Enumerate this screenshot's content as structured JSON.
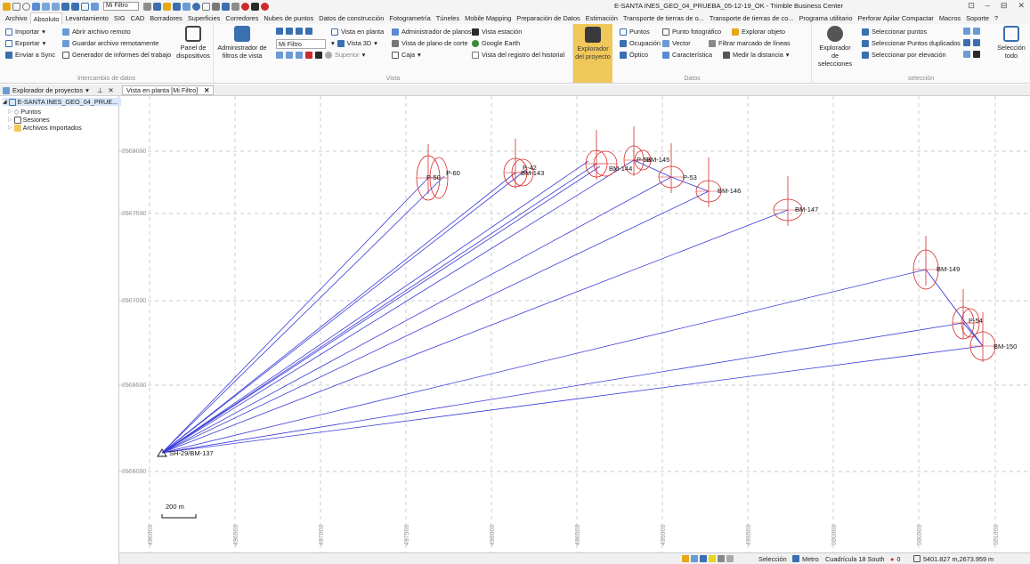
{
  "titlebar": {
    "title": "E-SANTA INES_GEO_04_PRUEBA_05-12-19_OK - Trimble Business Center",
    "filter_value": "Mi Filtro",
    "controls": [
      "⊡",
      "–",
      "⊟",
      "✕"
    ]
  },
  "menu": [
    "Archivo",
    "Absoluto",
    "Levantamiento",
    "SIG",
    "CAD",
    "Borradores",
    "Superficies",
    "Corredores",
    "Nubes de puntos",
    "Datos de construcción",
    "Fotogrametría",
    "Túneles",
    "Mobile Mapping",
    "Preparación de Datos",
    "Estimación",
    "Transporte de tierras de o...",
    "Transporte de tierras de co...",
    "Programa utilitario",
    "Perforar Apilar Compactar",
    "Macros",
    "Soporte",
    "?"
  ],
  "menu_active": "Absoluto",
  "ribbon": {
    "intercambio": {
      "title": "Intercambio de datos",
      "importar": "Importar",
      "abrir_remoto": "Abrir archivo remoto",
      "exportar": "Exportar",
      "guardar_remoto": "Guardar archivo remotamente",
      "enviar_sync": "Enviar a Sync",
      "generador": "Generador de informes del trabajo",
      "panel": "Panel de dispositivos"
    },
    "vista": {
      "title": "Vista",
      "admin_filtros": "Administrador de filtros de vista",
      "mi_filtro": "Mi Filtro",
      "vista_planta": "Vista en planta",
      "admin_planos": "Administrador de planos",
      "vista_estacion": "Vista estación",
      "vista_3d": "Vista 3D",
      "vista_corte": "Vista de plano de corte",
      "google_earth": "Google Earth",
      "superior": "Superior",
      "caja": "Caja",
      "vista_registro": "Vista del registro del historial"
    },
    "datos": {
      "title": "Datos",
      "explorador": "Explorador del proyecto",
      "puntos": "Puntos",
      "punto_foto": "Punto fotográfico",
      "explorar_objeto": "Explorar objeto",
      "ocupacion": "Ocupación",
      "vector": "Vector",
      "filtrar_marcado": "Filtrar marcado de líneas",
      "optico": "Óptico",
      "caracteristica": "Característica",
      "medir": "Medir la distancia"
    },
    "seleccion": {
      "title": "selección",
      "explorador_sel": "Explorador de selecciones",
      "sel_puntos": "Seleccionar puntos",
      "sel_duplicados": "Seleccionar Puntos duplicados",
      "sel_elevacion": "Seleccionar por elevación",
      "sel_todo": "Selección todo"
    }
  },
  "panel": {
    "header": "Explorador de proyectos",
    "project": "E-SANTA INES_GEO_04_PRUE...",
    "items": [
      "Puntos",
      "Sesiones",
      "Archivos importados"
    ]
  },
  "view_tab": "Vista en planta [Mi Filtro]",
  "map": {
    "y_labels": [
      "8568000",
      "8567500",
      "8567000",
      "8566500",
      "8566000"
    ],
    "x_labels": [
      "496000",
      "496500",
      "497000",
      "497500",
      "498000",
      "498500",
      "499000",
      "499500",
      "500000",
      "500500",
      "501000"
    ],
    "scale_label": "200 m",
    "base_label": "SH-29/BM-137",
    "points": [
      {
        "label": "P-50",
        "label2": "P-60"
      },
      {
        "label": "P-42",
        "label2": "BM-143"
      },
      {
        "label": "BM-144"
      },
      {
        "label": "P-52",
        "label2": "BM-145"
      },
      {
        "label": "P-53"
      },
      {
        "label": "BM-146"
      },
      {
        "label": "BM-147"
      },
      {
        "label": "BM-149"
      },
      {
        "label": "P-54"
      },
      {
        "label": "BM-150"
      }
    ]
  },
  "status": {
    "seleccion": "Selección",
    "unidad": "Metro",
    "cuadricula": "Cuadrícula 18 South",
    "count": "0",
    "coords": "5401.827 m,2673.959 m"
  }
}
